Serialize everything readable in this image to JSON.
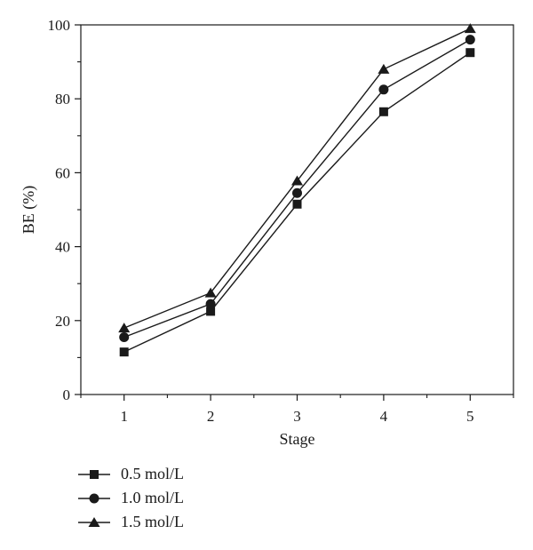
{
  "chart_data": {
    "type": "line",
    "title": "",
    "xlabel": "Stage",
    "ylabel": "BE (%)",
    "x": [
      1,
      2,
      3,
      4,
      5
    ],
    "x_ticks": [
      "1",
      "2",
      "3",
      "4",
      "5"
    ],
    "xlim": [
      0.5,
      5.5
    ],
    "ylim": [
      0,
      100
    ],
    "y_ticks": [
      "0",
      "20",
      "40",
      "60",
      "80",
      "100"
    ],
    "grid": false,
    "legend_position": "bottom-left",
    "series": [
      {
        "name": "0.5 mol/L",
        "marker": "square",
        "color": "#1a1a1a",
        "values": [
          11.5,
          22.5,
          51.5,
          76.5,
          92.5
        ]
      },
      {
        "name": "1.0 mol/L",
        "marker": "circle",
        "color": "#1a1a1a",
        "values": [
          15.5,
          24.5,
          54.5,
          82.5,
          96
        ]
      },
      {
        "name": "1.5 mol/L",
        "marker": "triangle",
        "color": "#1a1a1a",
        "values": [
          18,
          27.5,
          57.8,
          88,
          99
        ]
      }
    ]
  }
}
